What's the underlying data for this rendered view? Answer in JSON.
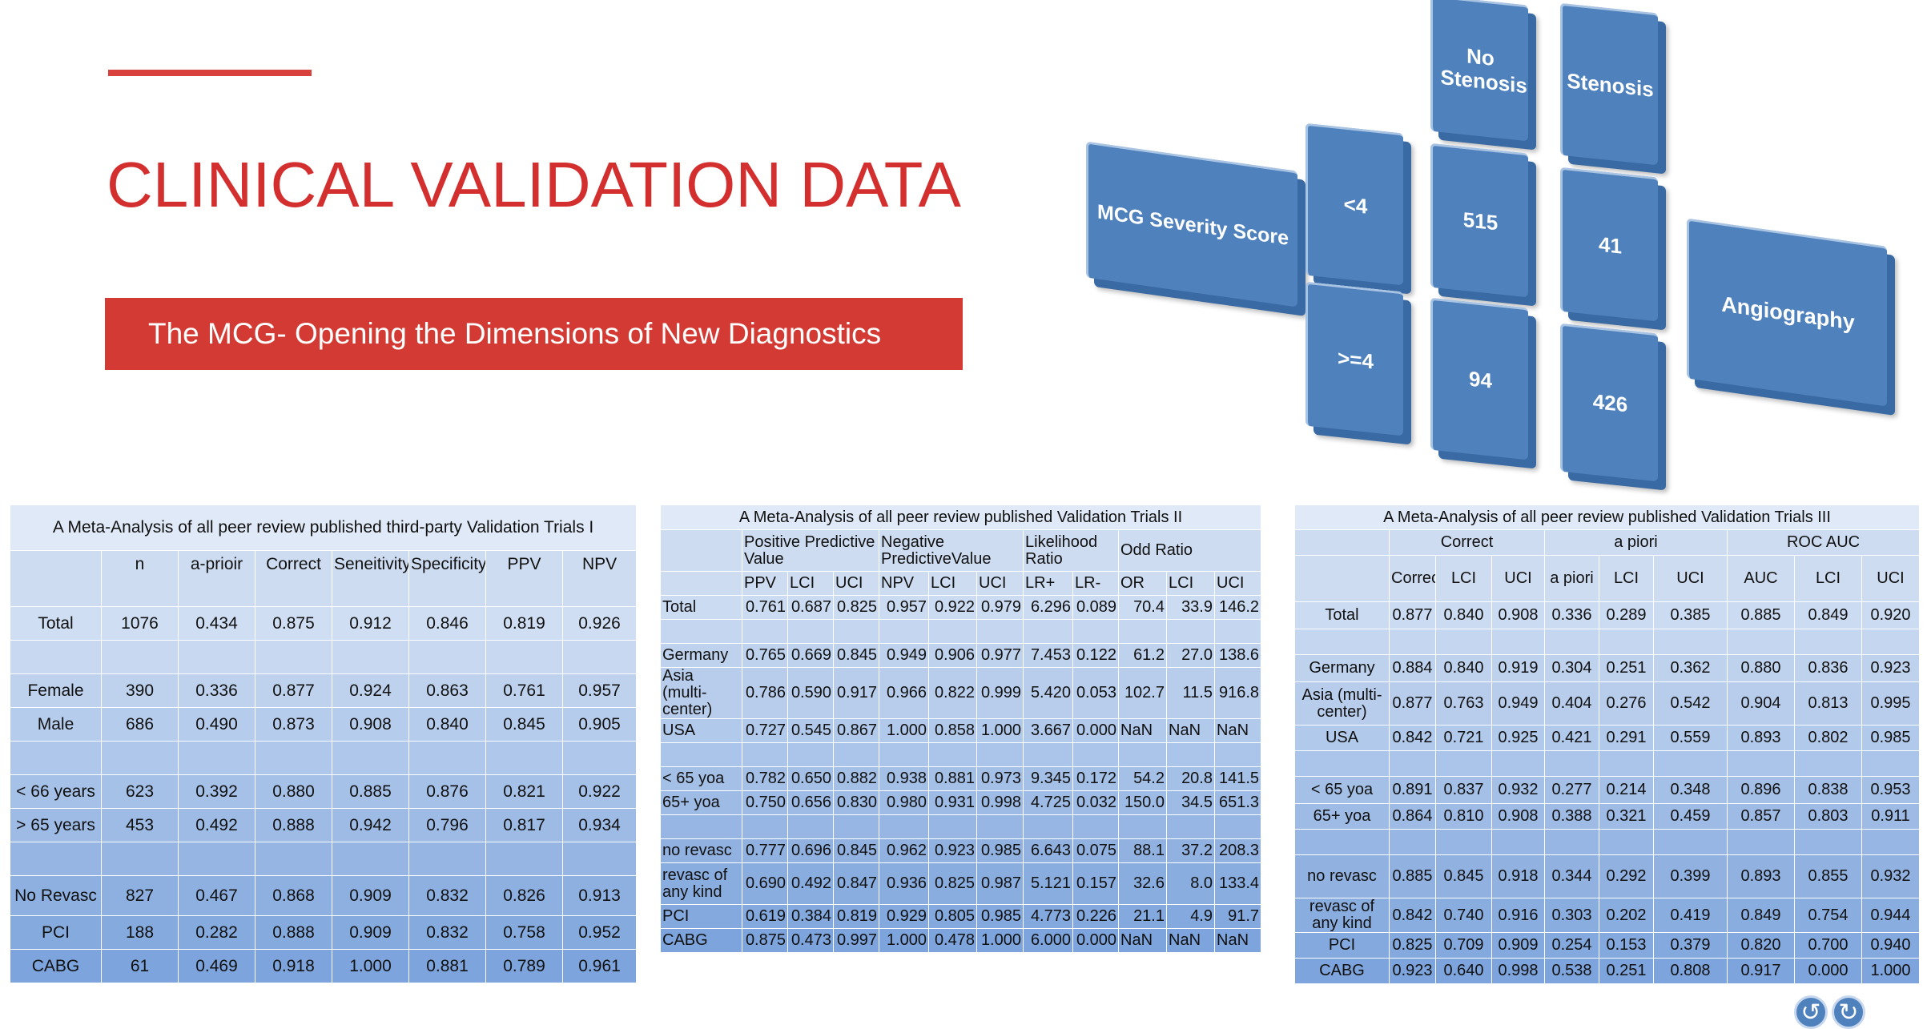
{
  "slide": {
    "title": "CLINICAL VALIDATION DATA",
    "subtitle": "The MCG- Opening the Dimensions of New Diagnostics",
    "accent_color": "#d32f2f",
    "table_gradient": [
      "#dfe9f7",
      "#7fa6dc"
    ]
  },
  "diagram": {
    "row_axis": "MCG Severity Score",
    "row_lt": "<4",
    "row_ge": ">=4",
    "col_axis": "Angiography",
    "col_no": "No Stenosis",
    "col_yes": "Stenosis",
    "c_lt_no": "515",
    "c_lt_yes": "41",
    "c_ge_no": "94",
    "c_ge_yes": "426"
  },
  "table1": {
    "caption": "A Meta-Analysis of all peer review published third-party Validation Trials I",
    "headers": [
      "",
      "n",
      "a-prioir",
      "Correct",
      "Seneitivity",
      "Specificity",
      "PPV",
      "NPV"
    ],
    "rows": [
      [
        "Total",
        "1076",
        "0.434",
        "0.875",
        "0.912",
        "0.846",
        "0.819",
        "0.926"
      ],
      [
        "",
        "",
        "",
        "",
        "",
        "",
        "",
        ""
      ],
      [
        "Female",
        "390",
        "0.336",
        "0.877",
        "0.924",
        "0.863",
        "0.761",
        "0.957"
      ],
      [
        "Male",
        "686",
        "0.490",
        "0.873",
        "0.908",
        "0.840",
        "0.845",
        "0.905"
      ],
      [
        "",
        "",
        "",
        "",
        "",
        "",
        "",
        ""
      ],
      [
        "< 66 years",
        "623",
        "0.392",
        "0.880",
        "0.885",
        "0.876",
        "0.821",
        "0.922"
      ],
      [
        "> 65 years",
        "453",
        "0.492",
        "0.888",
        "0.942",
        "0.796",
        "0.817",
        "0.934"
      ],
      [
        "",
        "",
        "",
        "",
        "",
        "",
        "",
        ""
      ],
      [
        "No Revasc",
        "827",
        "0.467",
        "0.868",
        "0.909",
        "0.832",
        "0.826",
        "0.913"
      ],
      [
        "PCI",
        "188",
        "0.282",
        "0.888",
        "0.909",
        "0.832",
        "0.758",
        "0.952"
      ],
      [
        "CABG",
        "61",
        "0.469",
        "0.918",
        "1.000",
        "0.881",
        "0.789",
        "0.961"
      ]
    ]
  },
  "table2": {
    "caption": "A Meta-Analysis of all peer review published Validation Trials II",
    "groups": [
      "Positive Predictive Value",
      "Negative PredictiveValue",
      "Likelihood Ratio",
      "Odd Ratio"
    ],
    "headers": [
      "PPV",
      "LCI",
      "UCI",
      "NPV",
      "LCI",
      "UCI",
      "LR+",
      "LR-",
      "OR",
      "LCI",
      "UCI"
    ],
    "rows": [
      [
        "Total",
        "0.761",
        "0.687",
        "0.825",
        "0.957",
        "0.922",
        "0.979",
        "6.296",
        "0.089",
        "70.4",
        "33.9",
        "146.2"
      ],
      [
        "",
        "",
        "",
        "",
        "",
        "",
        "",
        "",
        "",
        "",
        "",
        ""
      ],
      [
        "Germany",
        "0.765",
        "0.669",
        "0.845",
        "0.949",
        "0.906",
        "0.977",
        "7.453",
        "0.122",
        "61.2",
        "27.0",
        "138.6"
      ],
      [
        "Asia (multi-center)",
        "0.786",
        "0.590",
        "0.917",
        "0.966",
        "0.822",
        "0.999",
        "5.420",
        "0.053",
        "102.7",
        "11.5",
        "916.8"
      ],
      [
        "USA",
        "0.727",
        "0.545",
        "0.867",
        "1.000",
        "0.858",
        "1.000",
        "3.667",
        "0.000",
        "NaN",
        "NaN",
        "NaN"
      ],
      [
        "",
        "",
        "",
        "",
        "",
        "",
        "",
        "",
        "",
        "",
        "",
        ""
      ],
      [
        "< 65 yoa",
        "0.782",
        "0.650",
        "0.882",
        "0.938",
        "0.881",
        "0.973",
        "9.345",
        "0.172",
        "54.2",
        "20.8",
        "141.5"
      ],
      [
        "65+ yoa",
        "0.750",
        "0.656",
        "0.830",
        "0.980",
        "0.931",
        "0.998",
        "4.725",
        "0.032",
        "150.0",
        "34.5",
        "651.3"
      ],
      [
        "",
        "",
        "",
        "",
        "",
        "",
        "",
        "",
        "",
        "",
        "",
        ""
      ],
      [
        "no revasc",
        "0.777",
        "0.696",
        "0.845",
        "0.962",
        "0.923",
        "0.985",
        "6.643",
        "0.075",
        "88.1",
        "37.2",
        "208.3"
      ],
      [
        "revasc of any kind",
        "0.690",
        "0.492",
        "0.847",
        "0.936",
        "0.825",
        "0.987",
        "5.121",
        "0.157",
        "32.6",
        "8.0",
        "133.4"
      ],
      [
        "PCI",
        "0.619",
        "0.384",
        "0.819",
        "0.929",
        "0.805",
        "0.985",
        "4.773",
        "0.226",
        "21.1",
        "4.9",
        "91.7"
      ],
      [
        "CABG",
        "0.875",
        "0.473",
        "0.997",
        "1.000",
        "0.478",
        "1.000",
        "6.000",
        "0.000",
        "NaN",
        "NaN",
        "NaN"
      ]
    ]
  },
  "table3": {
    "caption": "A Meta-Analysis of all peer review published Validation Trials III",
    "groups": [
      "Correct",
      "a piori",
      "ROC AUC"
    ],
    "headers": [
      "Correct",
      "LCI",
      "UCI",
      "a piori",
      "LCI",
      "UCI",
      "AUC",
      "LCI",
      "UCI"
    ],
    "rows": [
      [
        "Total",
        "0.877",
        "0.840",
        "0.908",
        "0.336",
        "0.289",
        "0.385",
        "0.885",
        "0.849",
        "0.920"
      ],
      [
        "",
        "",
        "",
        "",
        "",
        "",
        "",
        "",
        "",
        ""
      ],
      [
        "Germany",
        "0.884",
        "0.840",
        "0.919",
        "0.304",
        "0.251",
        "0.362",
        "0.880",
        "0.836",
        "0.923"
      ],
      [
        "Asia (multi-center)",
        "0.877",
        "0.763",
        "0.949",
        "0.404",
        "0.276",
        "0.542",
        "0.904",
        "0.813",
        "0.995"
      ],
      [
        "USA",
        "0.842",
        "0.721",
        "0.925",
        "0.421",
        "0.291",
        "0.559",
        "0.893",
        "0.802",
        "0.985"
      ],
      [
        "",
        "",
        "",
        "",
        "",
        "",
        "",
        "",
        "",
        ""
      ],
      [
        "< 65 yoa",
        "0.891",
        "0.837",
        "0.932",
        "0.277",
        "0.214",
        "0.348",
        "0.896",
        "0.838",
        "0.953"
      ],
      [
        "65+ yoa",
        "0.864",
        "0.810",
        "0.908",
        "0.388",
        "0.321",
        "0.459",
        "0.857",
        "0.803",
        "0.911"
      ],
      [
        "",
        "",
        "",
        "",
        "",
        "",
        "",
        "",
        "",
        ""
      ],
      [
        "no revasc",
        "0.885",
        "0.845",
        "0.918",
        "0.344",
        "0.292",
        "0.399",
        "0.893",
        "0.855",
        "0.932"
      ],
      [
        "revasc of any kind",
        "0.842",
        "0.740",
        "0.916",
        "0.303",
        "0.202",
        "0.419",
        "0.849",
        "0.754",
        "0.944"
      ],
      [
        "PCI",
        "0.825",
        "0.709",
        "0.909",
        "0.254",
        "0.153",
        "0.379",
        "0.820",
        "0.700",
        "0.940"
      ],
      [
        "CABG",
        "0.923",
        "0.640",
        "0.998",
        "0.538",
        "0.251",
        "0.808",
        "0.917",
        "0.000",
        "1.000"
      ]
    ]
  },
  "nav": {
    "icon_back": "arrow-left-icon",
    "icon_forward": "arrow-right-icon"
  }
}
